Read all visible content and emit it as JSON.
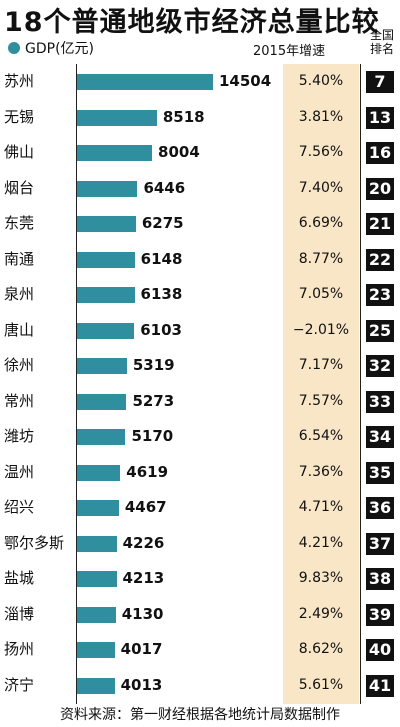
{
  "title": "18个普通地级市经济总量比较",
  "legend": "GDP(亿元)",
  "growth_header": "2015年增速",
  "rank_header": [
    "全国",
    "排名"
  ],
  "source": "资料来源：第一财经根据各地统计局数据制作",
  "colors": {
    "bar": "#2f8f9e",
    "growth_bg": "#f8e6c6",
    "rank_box": "#111111"
  },
  "chart_data": {
    "type": "bar",
    "orientation": "horizontal",
    "title": "18个普通地级市经济总量比较",
    "legend": "GDP(亿元)",
    "categories": [
      "苏州",
      "无锡",
      "佛山",
      "烟台",
      "东莞",
      "南通",
      "泉州",
      "唐山",
      "徐州",
      "常州",
      "潍坊",
      "温州",
      "绍兴",
      "鄂尔多斯",
      "盐城",
      "淄博",
      "扬州",
      "济宁"
    ],
    "values": [
      14504,
      8518,
      8004,
      6446,
      6275,
      6148,
      6138,
      6103,
      5319,
      5273,
      5170,
      4619,
      4467,
      4226,
      4213,
      4130,
      4017,
      4013
    ],
    "growth": [
      "5.40%",
      "3.81%",
      "7.56%",
      "7.40%",
      "6.69%",
      "8.77%",
      "7.05%",
      "−2.01%",
      "7.17%",
      "7.57%",
      "6.54%",
      "7.36%",
      "4.71%",
      "4.21%",
      "9.83%",
      "2.49%",
      "8.62%",
      "5.61%"
    ],
    "rank": [
      "7",
      "13",
      "16",
      "20",
      "21",
      "22",
      "23",
      "25",
      "32",
      "33",
      "34",
      "35",
      "36",
      "37",
      "38",
      "39",
      "40",
      "41"
    ],
    "xlim": [
      0,
      14504
    ]
  }
}
